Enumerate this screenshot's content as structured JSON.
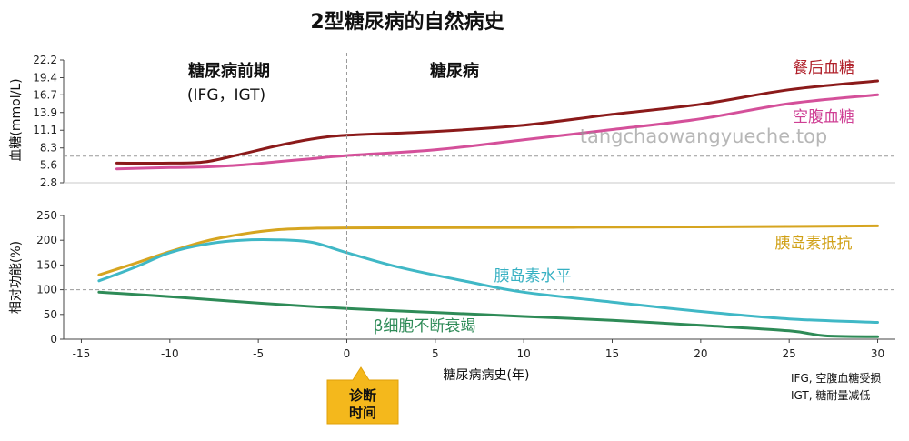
{
  "chart_data": [
    {
      "type": "line",
      "title": "2型糖尿病的自然病史",
      "ylabel": "血糖(mmol/L)",
      "yticks": [
        "2.8",
        "5.6",
        "8.3",
        "11.1",
        "13.9",
        "16.7",
        "19.4",
        "22.2"
      ],
      "ylim": [
        2.8,
        22.2
      ],
      "xlim": [
        -16,
        31
      ],
      "reference_line_y": 7.0,
      "period_labels": {
        "pre": "糖尿病前期",
        "pre_sub": "(IFG，IGT)",
        "post": "糖尿病"
      },
      "series": [
        {
          "name": "餐后血糖",
          "color": "#8b1a1a",
          "x": [
            -13,
            -10,
            -8,
            -6,
            -4,
            -2,
            0,
            5,
            10,
            15,
            20,
            25,
            30
          ],
          "y": [
            5.9,
            5.9,
            6.1,
            7.3,
            8.6,
            9.7,
            10.3,
            10.9,
            11.9,
            13.6,
            15.2,
            17.5,
            18.9
          ]
        },
        {
          "name": "空腹血糖",
          "color": "#d4509a",
          "x": [
            -13,
            -10,
            -8,
            -6,
            -4,
            -2,
            0,
            5,
            10,
            15,
            20,
            25,
            30
          ],
          "y": [
            5.0,
            5.2,
            5.3,
            5.6,
            6.1,
            6.6,
            7.1,
            8.0,
            9.6,
            11.2,
            12.9,
            15.3,
            16.7
          ]
        }
      ]
    },
    {
      "type": "line",
      "ylabel": "相对功能(%)",
      "yticks": [
        "0",
        "50",
        "100",
        "150",
        "200",
        "250"
      ],
      "ylim": [
        0,
        250
      ],
      "xticks": [
        "-15",
        "-10",
        "-5",
        "0",
        "5",
        "10",
        "15",
        "20",
        "25",
        "30"
      ],
      "xlim": [
        -16,
        31
      ],
      "xlabel": "糖尿病病史(年)",
      "reference_line_y": 100,
      "series": [
        {
          "name": "胰岛素抵抗",
          "color": "#d6a520",
          "x": [
            -14,
            -12,
            -10,
            -8,
            -6,
            -4,
            -2,
            0,
            10,
            20,
            30
          ],
          "y": [
            130,
            153,
            177,
            198,
            212,
            221,
            224,
            225,
            226,
            227,
            229
          ]
        },
        {
          "name": "胰岛素水平",
          "color": "#40b8c6",
          "x": [
            -14,
            -12,
            -10,
            -8,
            -6,
            -4,
            -2,
            0,
            3,
            7,
            10,
            15,
            20,
            25,
            30
          ],
          "y": [
            118,
            145,
            175,
            192,
            200,
            201,
            196,
            175,
            145,
            115,
            95,
            75,
            56,
            41,
            34
          ]
        },
        {
          "name": "β细胞不断衰竭",
          "color": "#2e8b57",
          "x": [
            -14,
            -10,
            -5,
            0,
            5,
            10,
            15,
            20,
            25,
            27,
            30
          ],
          "y": [
            95,
            86,
            73,
            62,
            54,
            46,
            38,
            28,
            17,
            7,
            5
          ]
        }
      ]
    }
  ],
  "diagnosis_badge": {
    "line1": "诊断",
    "line2": "时间",
    "x": 0
  },
  "footnote": {
    "line1": "IFG, 空腹血糖受损",
    "line2": "IGT, 糖耐量减低"
  },
  "watermark": "tangchaowangyueche.top",
  "colors": {
    "grid_dashed": "#999999",
    "axis": "#444444",
    "badge": "#f4b81c"
  }
}
